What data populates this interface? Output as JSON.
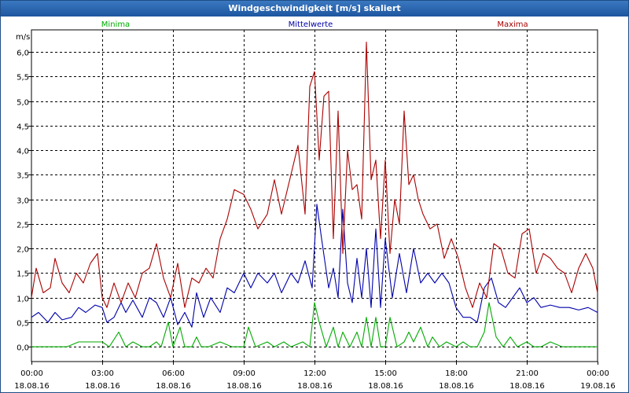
{
  "window": {
    "title": "Windgeschwindigkeit [m/s] skaliert"
  },
  "colors": {
    "minima": "#00aa00",
    "mittelwerte": "#0000aa",
    "maxima": "#aa0000",
    "grid": "#000000",
    "title_bar": "#2a64ad"
  },
  "chart_data": {
    "type": "line",
    "title": "Windgeschwindigkeit [m/s] skaliert",
    "ylabel": "m/s",
    "xlabel": "",
    "ylim": [
      -0.3,
      6.45
    ],
    "xlim_hours": [
      0,
      24
    ],
    "yticks": [
      "0,0",
      "0,5",
      "1,0",
      "1,5",
      "2,0",
      "2,5",
      "3,0",
      "3,5",
      "4,0",
      "4,5",
      "5,0",
      "5,5",
      "6,0"
    ],
    "xticks": [
      {
        "time": "00:00",
        "date": "18.08.16"
      },
      {
        "time": "03:00",
        "date": "18.08.16"
      },
      {
        "time": "06:00",
        "date": "18.08.16"
      },
      {
        "time": "09:00",
        "date": "18.08.16"
      },
      {
        "time": "12:00",
        "date": "18.08.16"
      },
      {
        "time": "15:00",
        "date": "18.08.16"
      },
      {
        "time": "18:00",
        "date": "18.08.16"
      },
      {
        "time": "21:00",
        "date": "18.08.16"
      },
      {
        "time": "00:00",
        "date": "19.08.16"
      }
    ],
    "grid": true,
    "legend": "top (above plot)",
    "series": [
      {
        "name": "Minima",
        "x_hours": [
          0.0,
          0.5,
          1.0,
          1.5,
          2.0,
          2.5,
          3.0,
          3.3,
          3.7,
          4.0,
          4.3,
          4.7,
          5.0,
          5.3,
          5.5,
          5.8,
          6.0,
          6.3,
          6.5,
          6.8,
          7.0,
          7.2,
          7.5,
          8.0,
          8.5,
          9.0,
          9.2,
          9.5,
          10.0,
          10.3,
          10.7,
          11.0,
          11.5,
          11.8,
          12.0,
          12.2,
          12.5,
          12.8,
          13.0,
          13.2,
          13.5,
          13.8,
          14.0,
          14.2,
          14.4,
          14.6,
          14.8,
          15.0,
          15.2,
          15.5,
          15.8,
          16.0,
          16.2,
          16.5,
          16.8,
          17.0,
          17.3,
          17.6,
          18.0,
          18.3,
          18.6,
          18.9,
          19.2,
          19.4,
          19.7,
          20.0,
          20.3,
          20.6,
          21.0,
          21.3,
          21.6,
          22.0,
          22.5,
          23.0,
          23.5,
          24.0
        ],
        "values": [
          0.0,
          0.0,
          0.0,
          0.0,
          0.1,
          0.1,
          0.1,
          0.0,
          0.3,
          0.0,
          0.1,
          0.0,
          0.0,
          0.1,
          0.0,
          0.5,
          0.0,
          0.4,
          0.0,
          0.0,
          0.2,
          0.0,
          0.0,
          0.1,
          0.0,
          0.0,
          0.4,
          0.0,
          0.1,
          0.0,
          0.1,
          0.0,
          0.1,
          0.0,
          0.9,
          0.5,
          0.0,
          0.4,
          0.0,
          0.3,
          0.0,
          0.3,
          0.0,
          0.6,
          0.0,
          0.6,
          0.0,
          0.0,
          0.6,
          0.0,
          0.1,
          0.3,
          0.1,
          0.4,
          0.0,
          0.2,
          0.0,
          0.1,
          0.0,
          0.1,
          0.0,
          0.0,
          0.3,
          0.9,
          0.2,
          0.0,
          0.2,
          0.0,
          0.1,
          0.0,
          0.0,
          0.1,
          0.0,
          0.0,
          0.0,
          0.0
        ]
      },
      {
        "name": "Mittelwerte",
        "x_hours": [
          0.0,
          0.3,
          0.7,
          1.0,
          1.3,
          1.7,
          2.0,
          2.3,
          2.7,
          3.0,
          3.2,
          3.5,
          3.8,
          4.0,
          4.3,
          4.7,
          5.0,
          5.3,
          5.6,
          5.9,
          6.2,
          6.5,
          6.8,
          7.0,
          7.3,
          7.6,
          8.0,
          8.3,
          8.6,
          9.0,
          9.3,
          9.6,
          10.0,
          10.3,
          10.6,
          11.0,
          11.3,
          11.6,
          11.9,
          12.1,
          12.3,
          12.6,
          12.8,
          13.0,
          13.2,
          13.4,
          13.6,
          13.8,
          14.0,
          14.2,
          14.4,
          14.6,
          14.8,
          15.0,
          15.3,
          15.6,
          15.9,
          16.2,
          16.5,
          16.8,
          17.1,
          17.4,
          17.7,
          18.0,
          18.3,
          18.6,
          18.9,
          19.2,
          19.5,
          19.8,
          20.1,
          20.4,
          20.7,
          21.0,
          21.3,
          21.6,
          22.0,
          22.4,
          22.8,
          23.2,
          23.6,
          24.0
        ],
        "values": [
          0.6,
          0.7,
          0.5,
          0.7,
          0.55,
          0.6,
          0.8,
          0.7,
          0.85,
          0.8,
          0.5,
          0.6,
          0.9,
          0.7,
          0.95,
          0.6,
          1.0,
          0.9,
          0.6,
          1.0,
          0.45,
          0.7,
          0.4,
          1.1,
          0.6,
          1.0,
          0.7,
          1.2,
          1.1,
          1.5,
          1.2,
          1.5,
          1.3,
          1.5,
          1.1,
          1.5,
          1.3,
          1.75,
          1.2,
          2.9,
          2.2,
          1.2,
          1.6,
          1.0,
          2.8,
          1.3,
          0.9,
          1.8,
          1.0,
          2.0,
          0.8,
          2.4,
          0.8,
          2.2,
          1.0,
          1.9,
          1.1,
          2.0,
          1.3,
          1.5,
          1.3,
          1.5,
          1.3,
          0.8,
          0.6,
          0.6,
          0.5,
          1.2,
          1.4,
          0.9,
          0.8,
          1.0,
          1.2,
          0.9,
          1.0,
          0.8,
          0.85,
          0.8,
          0.8,
          0.75,
          0.8,
          0.7
        ]
      },
      {
        "name": "Maxima",
        "x_hours": [
          0.0,
          0.2,
          0.5,
          0.8,
          1.0,
          1.3,
          1.6,
          1.9,
          2.2,
          2.5,
          2.8,
          3.0,
          3.2,
          3.5,
          3.8,
          4.1,
          4.4,
          4.7,
          5.0,
          5.3,
          5.6,
          5.9,
          6.2,
          6.5,
          6.8,
          7.1,
          7.4,
          7.7,
          8.0,
          8.3,
          8.6,
          9.0,
          9.3,
          9.6,
          10.0,
          10.3,
          10.6,
          11.0,
          11.3,
          11.6,
          11.8,
          12.0,
          12.2,
          12.4,
          12.6,
          12.8,
          13.0,
          13.2,
          13.4,
          13.6,
          13.8,
          14.0,
          14.2,
          14.4,
          14.6,
          14.8,
          15.0,
          15.2,
          15.4,
          15.6,
          15.8,
          16.0,
          16.2,
          16.4,
          16.6,
          16.9,
          17.2,
          17.5,
          17.8,
          18.1,
          18.4,
          18.7,
          19.0,
          19.3,
          19.6,
          19.9,
          20.2,
          20.5,
          20.8,
          21.1,
          21.4,
          21.7,
          22.0,
          22.3,
          22.6,
          22.9,
          23.2,
          23.5,
          23.8,
          24.0
        ],
        "values": [
          1.0,
          1.6,
          1.1,
          1.2,
          1.8,
          1.3,
          1.1,
          1.5,
          1.3,
          1.7,
          1.9,
          1.0,
          0.8,
          1.3,
          0.9,
          1.3,
          1.0,
          1.5,
          1.6,
          2.1,
          1.4,
          1.0,
          1.7,
          0.8,
          1.4,
          1.3,
          1.6,
          1.4,
          2.2,
          2.6,
          3.2,
          3.1,
          2.8,
          2.4,
          2.7,
          3.4,
          2.7,
          3.5,
          4.1,
          2.7,
          5.3,
          5.6,
          3.8,
          5.1,
          5.2,
          2.2,
          4.8,
          1.9,
          4.0,
          3.2,
          3.3,
          2.6,
          6.2,
          3.4,
          3.8,
          2.2,
          3.8,
          1.9,
          3.0,
          2.5,
          4.8,
          3.3,
          3.5,
          3.0,
          2.7,
          2.4,
          2.5,
          1.8,
          2.2,
          1.8,
          1.2,
          0.8,
          1.3,
          1.0,
          2.1,
          2.0,
          1.5,
          1.4,
          2.3,
          2.4,
          1.5,
          1.9,
          1.8,
          1.6,
          1.5,
          1.1,
          1.6,
          1.9,
          1.6,
          1.1
        ]
      }
    ]
  }
}
